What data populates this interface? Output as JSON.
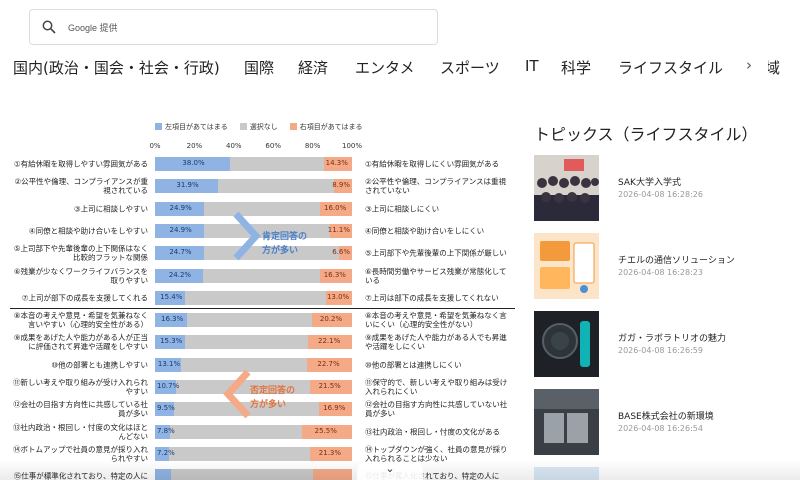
{
  "search": {
    "brand": "Google",
    "suffix": "提供"
  },
  "nav": {
    "items": [
      "国内(政治・国会・社会・行政)",
      "国際",
      "経済",
      "エンタメ",
      "スポーツ",
      "IT",
      "科学",
      "ライフスタイル",
      "地域"
    ],
    "arrow": "›"
  },
  "figure": {
    "legend": [
      "左項目があてはまる",
      "選択なし",
      "右項目があてはまる"
    ],
    "ticks": [
      "0%",
      "20%",
      "40%",
      "60%",
      "80%",
      "100%"
    ],
    "callout_positive": [
      "肯定回答の",
      "方が多い"
    ],
    "callout_negative": [
      "否定回答の",
      "方が多い"
    ]
  },
  "chart_data": {
    "type": "bar",
    "title": "",
    "xlim": [
      0,
      100
    ],
    "series": [
      {
        "name": "左項目があてはまる",
        "color": "#8fb4e3"
      },
      {
        "name": "選択なし",
        "color": "#c9c9c9"
      },
      {
        "name": "右項目があてはまる",
        "color": "#f4a987"
      }
    ],
    "rows": [
      {
        "left": "①有給休暇を取得しやすい雰囲気がある",
        "right": "①有給休暇を取得しにくい雰囲気がある",
        "l": 38.0,
        "r": 14.3,
        "lt": "38.0%",
        "rt": "14.3%"
      },
      {
        "left": "②公平性や倫理、コンプライアンスが重視されている",
        "right": "②公平性や倫理、コンプライアンスは重視されていない",
        "l": 31.9,
        "r": 8.9,
        "lt": "31.9%",
        "rt": "8.9%"
      },
      {
        "left": "③上司に相談しやすい",
        "right": "③上司に相談しにくい",
        "l": 24.9,
        "r": 16.0,
        "lt": "24.9%",
        "rt": "16.0%"
      },
      {
        "left": "④同僚と相談や助け合いをしやすい",
        "right": "④同僚と相談や助け合いをしにくい",
        "l": 24.9,
        "r": 11.1,
        "lt": "24.9%",
        "rt": "11.1%"
      },
      {
        "left": "⑤上司部下や先輩後輩の上下関係はなく比較的フラットな関係",
        "right": "⑤上司部下や先輩後輩の上下関係が厳しい",
        "l": 24.7,
        "r": 6.6,
        "lt": "24.7%",
        "rt": "6.6%"
      },
      {
        "left": "⑥残業が少なくワークライフバランスを取りやすい",
        "right": "⑥長時間労働やサービス残業が常態化している",
        "l": 24.2,
        "r": 16.3,
        "lt": "24.2%",
        "rt": "16.3%"
      },
      {
        "left": "⑦上司が部下の成長を支援してくれる",
        "right": "⑦上司は部下の成長を支援してくれない",
        "l": 15.4,
        "r": 13.0,
        "lt": "15.4%",
        "rt": "13.0%"
      },
      {
        "left": "⑧本音の考えや意見・希望を気兼ねなく言いやすい（心理的安全性がある）",
        "right": "⑧本音の考えや意見・希望を気兼ねなく言いにくい（心理的安全性がない）",
        "l": 16.3,
        "r": 20.2,
        "lt": "16.3%",
        "rt": "20.2%"
      },
      {
        "left": "⑨成果をあげた人や能力がある人が正当に評価されて昇進や活躍をしやすい",
        "right": "⑨成果をあげた人や能力がある人でも昇進や活躍をしにくい",
        "l": 15.3,
        "r": 22.1,
        "lt": "15.3%",
        "rt": "22.1%"
      },
      {
        "left": "⑩他の部署とも連携しやすい",
        "right": "⑩他の部署とは連携しにくい",
        "l": 13.1,
        "r": 22.7,
        "lt": "13.1%",
        "rt": "22.7%"
      },
      {
        "left": "⑪新しい考えや取り組みが受け入れられやすい",
        "right": "⑪保守的で、新しい考えや取り組みは受け入れられにくい",
        "l": 10.7,
        "r": 21.5,
        "lt": "10.7%",
        "rt": "21.5%"
      },
      {
        "left": "⑫会社の目指す方向性に共感している社員が多い",
        "right": "⑫会社の目指す方向性に共感していない社員が多い",
        "l": 9.5,
        "r": 16.9,
        "lt": "9.5%",
        "rt": "16.9%"
      },
      {
        "left": "⑬社内政治・根回し・忖度の文化はほとんどない",
        "right": "⑬社内政治・根回し・忖度の文化がある",
        "l": 7.8,
        "r": 25.5,
        "lt": "7.8%",
        "rt": "25.5%"
      },
      {
        "left": "⑭ボトムアップで社員の意見が採り入れられやすい",
        "right": "⑭トップダウンが強く、社員の意見が採り入れられることは少ない",
        "l": 7.2,
        "r": 21.3,
        "lt": "7.2%",
        "rt": "21.3%"
      },
      {
        "left": "⑮仕事が標準化されており、特定の人に",
        "right": "⑮仕事が属人化されており、特定の人に",
        "l": 8.0,
        "r": 20.0,
        "lt": "",
        "rt": ""
      }
    ]
  },
  "topics": {
    "title": "トピックス（ライフスタイル）",
    "items": [
      {
        "title": "SAK大学入学式",
        "date": "2026-04-08 16:28:26",
        "thumb": "people"
      },
      {
        "title": "チエルの通信ソリューション",
        "date": "2026-04-08 16:28:23",
        "thumb": "orange"
      },
      {
        "title": "ガガ・ラボラトリオの魅力",
        "date": "2026-04-08 16:26:59",
        "thumb": "dark"
      },
      {
        "title": "BASE株式会社の新環境",
        "date": "2026-04-08 16:26:54",
        "thumb": "office"
      }
    ]
  },
  "scroll_hint": "⌄"
}
